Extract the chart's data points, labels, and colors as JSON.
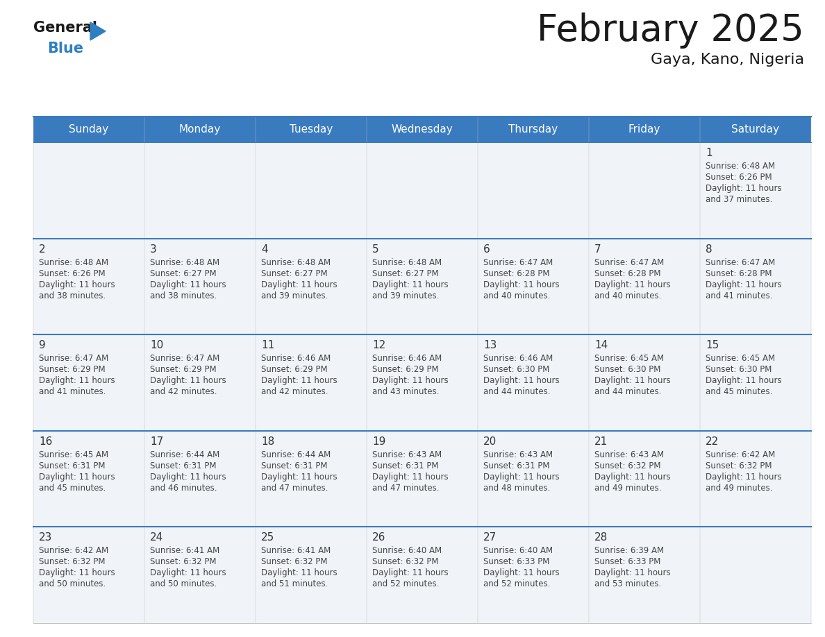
{
  "title": "February 2025",
  "subtitle": "Gaya, Kano, Nigeria",
  "header_color": "#3a7bbf",
  "header_text_color": "#ffffff",
  "day_names": [
    "Sunday",
    "Monday",
    "Tuesday",
    "Wednesday",
    "Thursday",
    "Friday",
    "Saturday"
  ],
  "bg_color": "#ffffff",
  "cell_bg": "#f0f4f8",
  "date_color": "#333333",
  "info_color": "#444444",
  "line_color": "#3a7bbf",
  "logo_black": "#1a1a1a",
  "logo_blue": "#2e7fc1",
  "title_color": "#1a1a1a",
  "subtitle_color": "#1a1a1a",
  "calendar": [
    [
      null,
      null,
      null,
      null,
      null,
      null,
      {
        "day": "1",
        "sunrise": "6:48 AM",
        "sunset": "6:26 PM",
        "daylight": "11 hours and 37 minutes"
      }
    ],
    [
      {
        "day": "2",
        "sunrise": "6:48 AM",
        "sunset": "6:26 PM",
        "daylight": "11 hours and 38 minutes"
      },
      {
        "day": "3",
        "sunrise": "6:48 AM",
        "sunset": "6:27 PM",
        "daylight": "11 hours and 38 minutes"
      },
      {
        "day": "4",
        "sunrise": "6:48 AM",
        "sunset": "6:27 PM",
        "daylight": "11 hours and 39 minutes"
      },
      {
        "day": "5",
        "sunrise": "6:48 AM",
        "sunset": "6:27 PM",
        "daylight": "11 hours and 39 minutes"
      },
      {
        "day": "6",
        "sunrise": "6:47 AM",
        "sunset": "6:28 PM",
        "daylight": "11 hours and 40 minutes"
      },
      {
        "day": "7",
        "sunrise": "6:47 AM",
        "sunset": "6:28 PM",
        "daylight": "11 hours and 40 minutes"
      },
      {
        "day": "8",
        "sunrise": "6:47 AM",
        "sunset": "6:28 PM",
        "daylight": "11 hours and 41 minutes"
      }
    ],
    [
      {
        "day": "9",
        "sunrise": "6:47 AM",
        "sunset": "6:29 PM",
        "daylight": "11 hours and 41 minutes"
      },
      {
        "day": "10",
        "sunrise": "6:47 AM",
        "sunset": "6:29 PM",
        "daylight": "11 hours and 42 minutes"
      },
      {
        "day": "11",
        "sunrise": "6:46 AM",
        "sunset": "6:29 PM",
        "daylight": "11 hours and 42 minutes"
      },
      {
        "day": "12",
        "sunrise": "6:46 AM",
        "sunset": "6:29 PM",
        "daylight": "11 hours and 43 minutes"
      },
      {
        "day": "13",
        "sunrise": "6:46 AM",
        "sunset": "6:30 PM",
        "daylight": "11 hours and 44 minutes"
      },
      {
        "day": "14",
        "sunrise": "6:45 AM",
        "sunset": "6:30 PM",
        "daylight": "11 hours and 44 minutes"
      },
      {
        "day": "15",
        "sunrise": "6:45 AM",
        "sunset": "6:30 PM",
        "daylight": "11 hours and 45 minutes"
      }
    ],
    [
      {
        "day": "16",
        "sunrise": "6:45 AM",
        "sunset": "6:31 PM",
        "daylight": "11 hours and 45 minutes"
      },
      {
        "day": "17",
        "sunrise": "6:44 AM",
        "sunset": "6:31 PM",
        "daylight": "11 hours and 46 minutes"
      },
      {
        "day": "18",
        "sunrise": "6:44 AM",
        "sunset": "6:31 PM",
        "daylight": "11 hours and 47 minutes"
      },
      {
        "day": "19",
        "sunrise": "6:43 AM",
        "sunset": "6:31 PM",
        "daylight": "11 hours and 47 minutes"
      },
      {
        "day": "20",
        "sunrise": "6:43 AM",
        "sunset": "6:31 PM",
        "daylight": "11 hours and 48 minutes"
      },
      {
        "day": "21",
        "sunrise": "6:43 AM",
        "sunset": "6:32 PM",
        "daylight": "11 hours and 49 minutes"
      },
      {
        "day": "22",
        "sunrise": "6:42 AM",
        "sunset": "6:32 PM",
        "daylight": "11 hours and 49 minutes"
      }
    ],
    [
      {
        "day": "23",
        "sunrise": "6:42 AM",
        "sunset": "6:32 PM",
        "daylight": "11 hours and 50 minutes"
      },
      {
        "day": "24",
        "sunrise": "6:41 AM",
        "sunset": "6:32 PM",
        "daylight": "11 hours and 50 minutes"
      },
      {
        "day": "25",
        "sunrise": "6:41 AM",
        "sunset": "6:32 PM",
        "daylight": "11 hours and 51 minutes"
      },
      {
        "day": "26",
        "sunrise": "6:40 AM",
        "sunset": "6:32 PM",
        "daylight": "11 hours and 52 minutes"
      },
      {
        "day": "27",
        "sunrise": "6:40 AM",
        "sunset": "6:33 PM",
        "daylight": "11 hours and 52 minutes"
      },
      {
        "day": "28",
        "sunrise": "6:39 AM",
        "sunset": "6:33 PM",
        "daylight": "11 hours and 53 minutes"
      },
      null
    ]
  ]
}
